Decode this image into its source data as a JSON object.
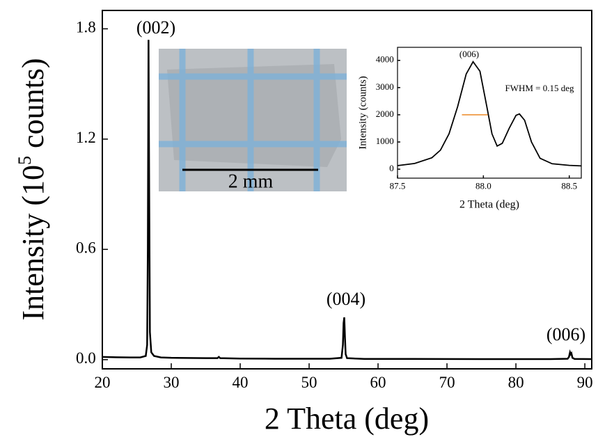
{
  "chart_data": [
    {
      "type": "line",
      "x_label": "2 Theta (deg)",
      "y_label_parts": [
        "Intensity (10",
        "5",
        " counts)"
      ],
      "xlim": [
        20,
        91
      ],
      "ylim": [
        -0.05,
        1.9
      ],
      "xticks": [
        20,
        30,
        40,
        50,
        60,
        70,
        80,
        90
      ],
      "yticks": [
        {
          "value": 0,
          "label": "0.0"
        },
        0.6,
        1.2,
        1.8
      ],
      "annotations": [
        "(002)",
        "(004)",
        "(006)"
      ],
      "series": [
        {
          "color": "#000000",
          "x": [
            20,
            22,
            24,
            25.5,
            26.3,
            26.5,
            26.6,
            26.7,
            26.8,
            26.9,
            27.1,
            27.5,
            28.5,
            30,
            35,
            36.7,
            36.9,
            37.1,
            40,
            45,
            50,
            53,
            54.7,
            54.9,
            55.0,
            55.1,
            55.2,
            55.3,
            55.5,
            58,
            65,
            75,
            85,
            87.5,
            87.7,
            87.85,
            87.95,
            88.05,
            88.2,
            88.5,
            91
          ],
          "values": [
            0.015,
            0.013,
            0.012,
            0.012,
            0.02,
            0.08,
            0.6,
            1.74,
            0.9,
            0.15,
            0.04,
            0.02,
            0.012,
            0.01,
            0.008,
            0.008,
            0.015,
            0.008,
            0.006,
            0.005,
            0.005,
            0.005,
            0.01,
            0.08,
            0.2,
            0.23,
            0.12,
            0.03,
            0.008,
            0.004,
            0.004,
            0.003,
            0.003,
            0.005,
            0.015,
            0.04,
            0.03,
            0.035,
            0.01,
            0.004,
            0.003
          ]
        }
      ]
    },
    {
      "type": "line",
      "x_label": "2 Theta (deg)",
      "y_label": "Intensity (counts)",
      "xlim": [
        87.5,
        88.57
      ],
      "ylim": [
        -330,
        4480
      ],
      "xticks": [
        87.5,
        {
          "value": 88,
          "label": "88.0"
        },
        88.5
      ],
      "yticks": [
        0,
        1000,
        2000,
        3000,
        4000
      ],
      "annotations": [
        "(006)",
        "FWHM = 0.15 deg"
      ],
      "fwhm_marker": {
        "x": [
          87.875,
          88.025
        ],
        "y": 2000,
        "color": "#f0a050"
      },
      "series": [
        {
          "color": "#000000",
          "x": [
            87.5,
            87.6,
            87.7,
            87.75,
            87.8,
            87.85,
            87.9,
            87.94,
            87.98,
            88.02,
            88.05,
            88.08,
            88.11,
            88.15,
            88.19,
            88.21,
            88.24,
            88.28,
            88.33,
            88.4,
            88.5,
            88.57
          ],
          "values": [
            130,
            210,
            420,
            700,
            1300,
            2300,
            3500,
            3950,
            3600,
            2300,
            1300,
            850,
            950,
            1500,
            1980,
            2030,
            1800,
            1000,
            400,
            200,
            140,
            120
          ]
        }
      ]
    }
  ],
  "photo_inset": {
    "scale_label": "2 mm"
  }
}
